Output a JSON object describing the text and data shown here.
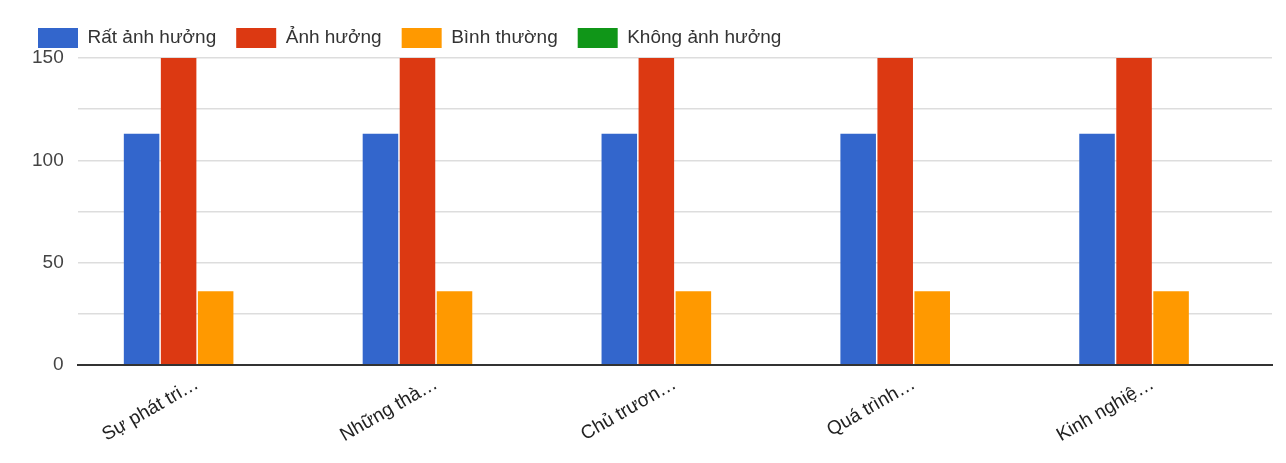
{
  "chart_data": {
    "type": "bar",
    "categories": [
      "Sự phát tri…",
      "Những thà…",
      "Chủ trươn…",
      "Quá trình…",
      "Kinh nghiệ…"
    ],
    "series": [
      {
        "name": "Rất ảnh hưởng",
        "color": "#3366cc",
        "values": [
          113,
          113,
          113,
          113,
          113
        ]
      },
      {
        "name": "Ảnh hưởng",
        "color": "#dc3912",
        "values": [
          150,
          150,
          150,
          150,
          150
        ]
      },
      {
        "name": "Bình thường",
        "color": "#ff9900",
        "values": [
          36,
          36,
          36,
          36,
          36
        ]
      },
      {
        "name": "Không ảnh hưởng",
        "color": "#109618",
        "values": [
          0,
          0,
          0,
          0,
          0
        ]
      }
    ],
    "ylim": [
      0,
      150
    ],
    "yticks": [
      0,
      {
        "value": 25,
        "label": null
      },
      50,
      {
        "value": 75,
        "label": null
      },
      100,
      {
        "value": 125,
        "label": null
      },
      150
    ],
    "grid": "y",
    "legend": "top"
  }
}
